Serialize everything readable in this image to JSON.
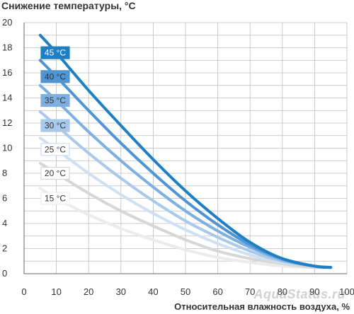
{
  "chart_data": {
    "type": "line",
    "ylabel": "Снижение температуры, °C",
    "xlabel": "Относительная влажность воздуха, %",
    "xlim": [
      0,
      100
    ],
    "ylim": [
      0,
      20
    ],
    "x_ticks": [
      0,
      10,
      20,
      30,
      40,
      50,
      60,
      70,
      80,
      90,
      100
    ],
    "y_tick_values": [
      0,
      2,
      4,
      6,
      8,
      10,
      12,
      14,
      16,
      18,
      20
    ],
    "y_tick_labels": [
      "0",
      "2",
      "4",
      "6",
      "8",
      "10",
      "12",
      "14",
      "16",
      "18",
      "20"
    ],
    "grid": true,
    "x": [
      5,
      10,
      20,
      30,
      40,
      50,
      60,
      70,
      80,
      90,
      95
    ],
    "series": [
      {
        "name": "15 °C",
        "color": "#ebebeb",
        "values": [
          6.8,
          6.0,
          4.7,
          3.6,
          2.7,
          1.9,
          1.3,
          0.9,
          0.6,
          0.5,
          0.5
        ]
      },
      {
        "name": "20 °C",
        "color": "#d6d6d6",
        "values": [
          8.8,
          8.0,
          6.4,
          5.0,
          3.8,
          2.7,
          1.8,
          1.2,
          0.8,
          0.5,
          0.5
        ]
      },
      {
        "name": "25 °C",
        "color": "#cfe0f2",
        "values": [
          10.8,
          9.9,
          8.0,
          6.3,
          4.8,
          3.5,
          2.4,
          1.5,
          0.9,
          0.6,
          0.5
        ]
      },
      {
        "name": "30 °C",
        "color": "#a9c9ea",
        "values": [
          12.9,
          11.8,
          9.6,
          7.6,
          5.8,
          4.2,
          2.9,
          1.8,
          1.0,
          0.6,
          0.5
        ]
      },
      {
        "name": "35 °C",
        "color": "#7db0e0",
        "values": [
          15.0,
          13.8,
          11.3,
          9.0,
          6.9,
          5.0,
          3.4,
          2.1,
          1.1,
          0.6,
          0.5
        ]
      },
      {
        "name": "40 °C",
        "color": "#4f95d3",
        "values": [
          17.0,
          15.7,
          13.0,
          10.4,
          8.0,
          5.8,
          3.9,
          2.3,
          1.2,
          0.6,
          0.5
        ]
      },
      {
        "name": "45 °C",
        "color": "#1f7fc4",
        "values": [
          19.0,
          17.6,
          14.6,
          11.8,
          9.1,
          6.6,
          4.4,
          2.5,
          1.2,
          0.6,
          0.5
        ]
      }
    ],
    "label_fill_colors": [
      "#ffffff",
      "#ffffff",
      "#ffffff",
      "#a9c9ea",
      "#7db0e0",
      "#4f95d3",
      "#1f7fc4"
    ],
    "label_text_colors": [
      "#333333",
      "#333333",
      "#333333",
      "#333333",
      "#333333",
      "#333333",
      "#ffffff"
    ]
  },
  "watermark": "AquaStatus.ru"
}
